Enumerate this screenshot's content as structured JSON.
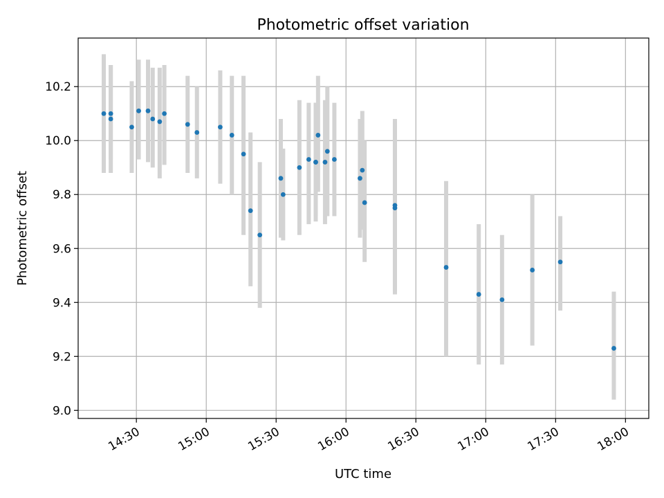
{
  "chart_data": {
    "type": "scatter",
    "title": "Photometric offset variation",
    "xlabel": "UTC time",
    "ylabel": "Photometric offset",
    "grid": true,
    "x_ticks": [
      "14:30",
      "15:00",
      "15:30",
      "16:00",
      "16:30",
      "17:00",
      "17:30",
      "18:00"
    ],
    "x_range": [
      "14:05",
      "18:10"
    ],
    "y_ticks": [
      9.0,
      9.2,
      9.4,
      9.6,
      9.8,
      10.0,
      10.2
    ],
    "ylim": [
      8.97,
      10.38
    ],
    "colors": {
      "points": "#1f77b4",
      "errorbars": "#d3d3d3",
      "grid": "#b0b0b0"
    },
    "series": [
      {
        "points": [
          {
            "x": "14:16",
            "y": 10.1,
            "low": 9.88,
            "high": 10.32
          },
          {
            "x": "14:19",
            "y": 10.08,
            "low": 9.88,
            "high": 10.28
          },
          {
            "x": "14:19",
            "y": 10.1,
            "low": 9.93,
            "high": 10.28
          },
          {
            "x": "14:28",
            "y": 10.05,
            "low": 9.88,
            "high": 10.22
          },
          {
            "x": "14:31",
            "y": 10.11,
            "low": 9.93,
            "high": 10.3
          },
          {
            "x": "14:35",
            "y": 10.11,
            "low": 9.92,
            "high": 10.3
          },
          {
            "x": "14:37",
            "y": 10.08,
            "low": 9.9,
            "high": 10.27
          },
          {
            "x": "14:40",
            "y": 10.07,
            "low": 9.86,
            "high": 10.27
          },
          {
            "x": "14:42",
            "y": 10.1,
            "low": 9.91,
            "high": 10.28
          },
          {
            "x": "14:52",
            "y": 10.06,
            "low": 9.88,
            "high": 10.24
          },
          {
            "x": "14:56",
            "y": 10.03,
            "low": 9.86,
            "high": 10.2
          },
          {
            "x": "15:06",
            "y": 10.05,
            "low": 9.84,
            "high": 10.26
          },
          {
            "x": "15:11",
            "y": 10.02,
            "low": 9.8,
            "high": 10.24
          },
          {
            "x": "15:16",
            "y": 9.95,
            "low": 9.65,
            "high": 10.24
          },
          {
            "x": "15:19",
            "y": 9.74,
            "low": 9.46,
            "high": 10.03
          },
          {
            "x": "15:23",
            "y": 9.65,
            "low": 9.38,
            "high": 9.92
          },
          {
            "x": "15:32",
            "y": 9.86,
            "low": 9.64,
            "high": 10.08
          },
          {
            "x": "15:33",
            "y": 9.8,
            "low": 9.63,
            "high": 9.97
          },
          {
            "x": "15:40",
            "y": 9.9,
            "low": 9.65,
            "high": 10.15
          },
          {
            "x": "15:44",
            "y": 9.93,
            "low": 9.69,
            "high": 10.14
          },
          {
            "x": "15:47",
            "y": 9.92,
            "low": 9.7,
            "high": 10.14
          },
          {
            "x": "15:47",
            "y": 9.92,
            "low": 9.72,
            "high": 10.14
          },
          {
            "x": "15:48",
            "y": 10.02,
            "low": 9.81,
            "high": 10.24
          },
          {
            "x": "15:51",
            "y": 9.92,
            "low": 9.69,
            "high": 10.15
          },
          {
            "x": "15:52",
            "y": 9.96,
            "low": 9.72,
            "high": 10.2
          },
          {
            "x": "15:55",
            "y": 9.93,
            "low": 9.72,
            "high": 10.14
          },
          {
            "x": "16:06",
            "y": 9.86,
            "low": 9.64,
            "high": 10.08
          },
          {
            "x": "16:07",
            "y": 9.89,
            "low": 9.67,
            "high": 10.11
          },
          {
            "x": "16:08",
            "y": 9.77,
            "low": 9.55,
            "high": 10.0
          },
          {
            "x": "16:21",
            "y": 9.75,
            "low": 9.43,
            "high": 10.07
          },
          {
            "x": "16:21",
            "y": 9.76,
            "low": 9.44,
            "high": 10.08
          },
          {
            "x": "16:43",
            "y": 9.53,
            "low": 9.2,
            "high": 9.85
          },
          {
            "x": "16:57",
            "y": 9.43,
            "low": 9.17,
            "high": 9.69
          },
          {
            "x": "17:07",
            "y": 9.41,
            "low": 9.17,
            "high": 9.65
          },
          {
            "x": "17:20",
            "y": 9.52,
            "low": 9.24,
            "high": 9.8
          },
          {
            "x": "17:32",
            "y": 9.55,
            "low": 9.37,
            "high": 9.72
          },
          {
            "x": "17:55",
            "y": 9.23,
            "low": 9.04,
            "high": 9.44
          }
        ]
      }
    ]
  }
}
